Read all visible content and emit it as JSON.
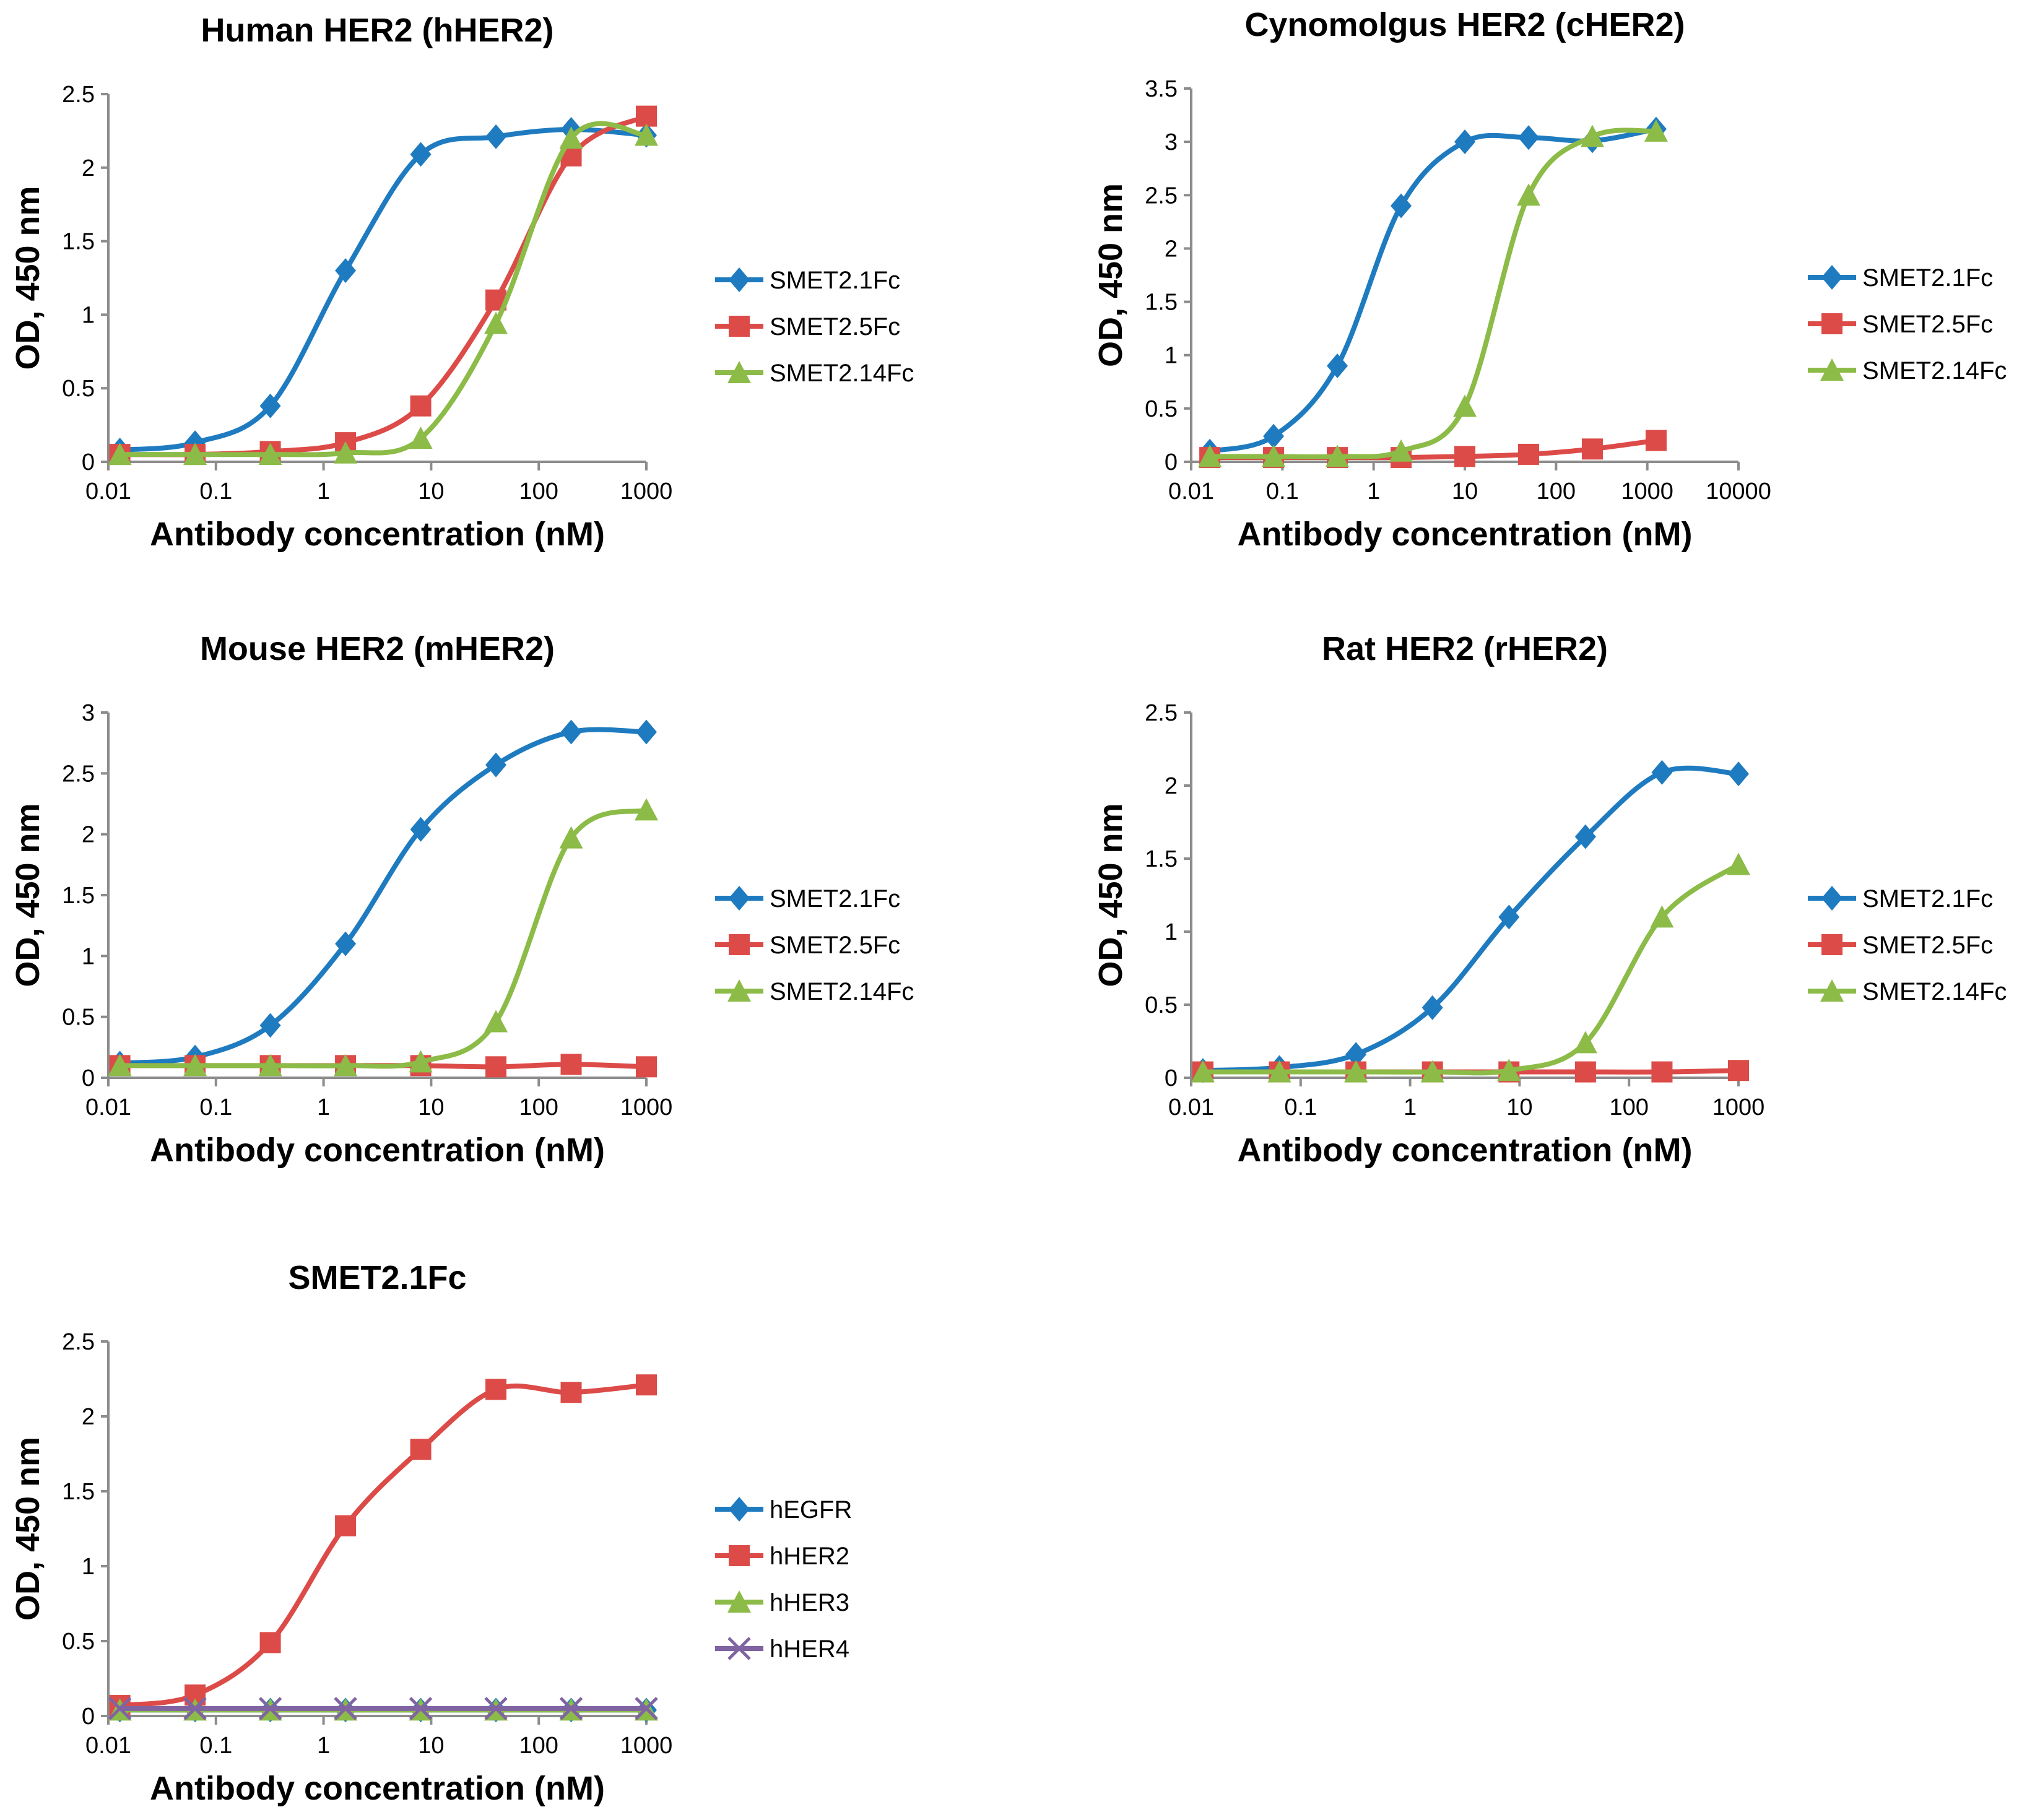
{
  "colors": {
    "SMET2.1Fc": "#1f7bc0",
    "SMET2.5Fc": "#dc4b48",
    "SMET2.14Fc": "#8cbb48",
    "hEGFR": "#1f7bc0",
    "hHER2": "#dc4b48",
    "hHER3": "#8cbb48",
    "hHER4": "#8064a2",
    "axis": "#8c8c8c"
  },
  "chart_data": [
    {
      "type": "line",
      "title": "Human HER2 (hHER2)",
      "xlabel": "Antibody concentration (nM)",
      "ylabel": "OD, 450 nm",
      "xscale": "log",
      "xlim": [
        0.01,
        1000
      ],
      "ylim": [
        0,
        2.5
      ],
      "yticks": [
        0,
        0.5,
        1,
        1.5,
        2,
        2.5
      ],
      "xticks": [
        "0.01",
        "0.1",
        "1",
        "10",
        "100",
        "1000"
      ],
      "legend": "right",
      "x": [
        0.0128,
        0.064,
        0.32,
        1.6,
        8,
        40,
        200,
        1000
      ],
      "series": [
        {
          "name": "SMET2.1Fc",
          "marker": "diamond",
          "values": [
            0.08,
            0.13,
            0.38,
            1.3,
            2.09,
            2.21,
            2.26,
            2.22
          ]
        },
        {
          "name": "SMET2.5Fc",
          "marker": "square",
          "values": [
            0.05,
            0.05,
            0.07,
            0.13,
            0.38,
            1.1,
            2.08,
            2.35
          ]
        },
        {
          "name": "SMET2.14Fc",
          "marker": "triangle",
          "values": [
            0.05,
            0.05,
            0.05,
            0.06,
            0.16,
            0.94,
            2.2,
            2.22
          ]
        }
      ]
    },
    {
      "type": "line",
      "title": "Cynomolgus HER2 (cHER2)",
      "xlabel": "Antibody concentration (nM)",
      "ylabel": "OD, 450 nm",
      "xscale": "log",
      "xlim": [
        0.01,
        10000
      ],
      "ylim": [
        0,
        3.5
      ],
      "yticks": [
        0,
        0.5,
        1,
        1.5,
        2,
        2.5,
        3,
        3.5
      ],
      "xticks": [
        "0.01",
        "0.1",
        "1",
        "10",
        "100",
        "1000",
        "10000"
      ],
      "legend": "right",
      "x": [
        0.016,
        0.08,
        0.4,
        2,
        10,
        50,
        250,
        1250
      ],
      "series": [
        {
          "name": "SMET2.1Fc",
          "marker": "diamond",
          "values": [
            0.1,
            0.24,
            0.9,
            2.4,
            3.0,
            3.04,
            3.01,
            3.12
          ]
        },
        {
          "name": "SMET2.5Fc",
          "marker": "square",
          "values": [
            0.04,
            0.04,
            0.04,
            0.04,
            0.05,
            0.07,
            0.12,
            0.2
          ]
        },
        {
          "name": "SMET2.14Fc",
          "marker": "triangle",
          "values": [
            0.05,
            0.05,
            0.05,
            0.1,
            0.52,
            2.5,
            3.05,
            3.1
          ]
        }
      ]
    },
    {
      "type": "line",
      "title": "Mouse HER2 (mHER2)",
      "xlabel": "Antibody concentration (nM)",
      "ylabel": "OD, 450 nm",
      "xscale": "log",
      "xlim": [
        0.01,
        1000
      ],
      "ylim": [
        0,
        3
      ],
      "yticks": [
        0,
        0.5,
        1,
        1.5,
        2,
        2.5,
        3
      ],
      "xticks": [
        "0.01",
        "0.1",
        "1",
        "10",
        "100",
        "1000"
      ],
      "legend": "right",
      "x": [
        0.0128,
        0.064,
        0.32,
        1.6,
        8,
        40,
        200,
        1000
      ],
      "series": [
        {
          "name": "SMET2.1Fc",
          "marker": "diamond",
          "values": [
            0.12,
            0.17,
            0.43,
            1.1,
            2.04,
            2.57,
            2.84,
            2.84
          ]
        },
        {
          "name": "SMET2.5Fc",
          "marker": "square",
          "values": [
            0.1,
            0.1,
            0.1,
            0.1,
            0.1,
            0.09,
            0.11,
            0.09
          ]
        },
        {
          "name": "SMET2.14Fc",
          "marker": "triangle",
          "values": [
            0.1,
            0.1,
            0.1,
            0.1,
            0.13,
            0.46,
            1.97,
            2.2
          ]
        }
      ]
    },
    {
      "type": "line",
      "title": "Rat HER2 (rHER2)",
      "xlabel": "Antibody concentration (nM)",
      "ylabel": "OD, 450 nm",
      "xscale": "log",
      "xlim": [
        0.01,
        1000
      ],
      "ylim": [
        0,
        2.5
      ],
      "yticks": [
        0,
        0.5,
        1,
        1.5,
        2,
        2.5
      ],
      "xticks": [
        "0.01",
        "0.1",
        "1",
        "10",
        "100",
        "1000"
      ],
      "legend": "right",
      "x": [
        0.0128,
        0.064,
        0.32,
        1.6,
        8,
        40,
        200,
        1000
      ],
      "series": [
        {
          "name": "SMET2.1Fc",
          "marker": "diamond",
          "values": [
            0.05,
            0.07,
            0.16,
            0.48,
            1.1,
            1.65,
            2.09,
            2.08
          ]
        },
        {
          "name": "SMET2.5Fc",
          "marker": "square",
          "values": [
            0.04,
            0.04,
            0.04,
            0.04,
            0.04,
            0.04,
            0.04,
            0.05
          ]
        },
        {
          "name": "SMET2.14Fc",
          "marker": "triangle",
          "values": [
            0.04,
            0.04,
            0.04,
            0.04,
            0.05,
            0.24,
            1.1,
            1.46
          ]
        }
      ]
    },
    {
      "type": "line",
      "title": "SMET2.1Fc",
      "xlabel": "Antibody concentration (nM)",
      "ylabel": "OD, 450 nm",
      "xscale": "log",
      "xlim": [
        0.01,
        1000
      ],
      "ylim": [
        0,
        2.5
      ],
      "yticks": [
        0,
        0.5,
        1,
        1.5,
        2,
        2.5
      ],
      "xticks": [
        "0.01",
        "0.1",
        "1",
        "10",
        "100",
        "1000"
      ],
      "legend": "right",
      "x": [
        0.0128,
        0.064,
        0.32,
        1.6,
        8,
        40,
        200,
        1000
      ],
      "series": [
        {
          "name": "hEGFR",
          "marker": "diamond",
          "values": [
            0.04,
            0.04,
            0.04,
            0.04,
            0.04,
            0.04,
            0.04,
            0.04
          ]
        },
        {
          "name": "hHER2",
          "marker": "square",
          "values": [
            0.07,
            0.14,
            0.49,
            1.27,
            1.78,
            2.18,
            2.16,
            2.21
          ]
        },
        {
          "name": "hHER3",
          "marker": "triangle",
          "values": [
            0.04,
            0.04,
            0.04,
            0.04,
            0.04,
            0.04,
            0.04,
            0.04
          ]
        },
        {
          "name": "hHER4",
          "marker": "x",
          "values": [
            0.05,
            0.05,
            0.05,
            0.05,
            0.05,
            0.05,
            0.05,
            0.05
          ]
        }
      ]
    }
  ]
}
